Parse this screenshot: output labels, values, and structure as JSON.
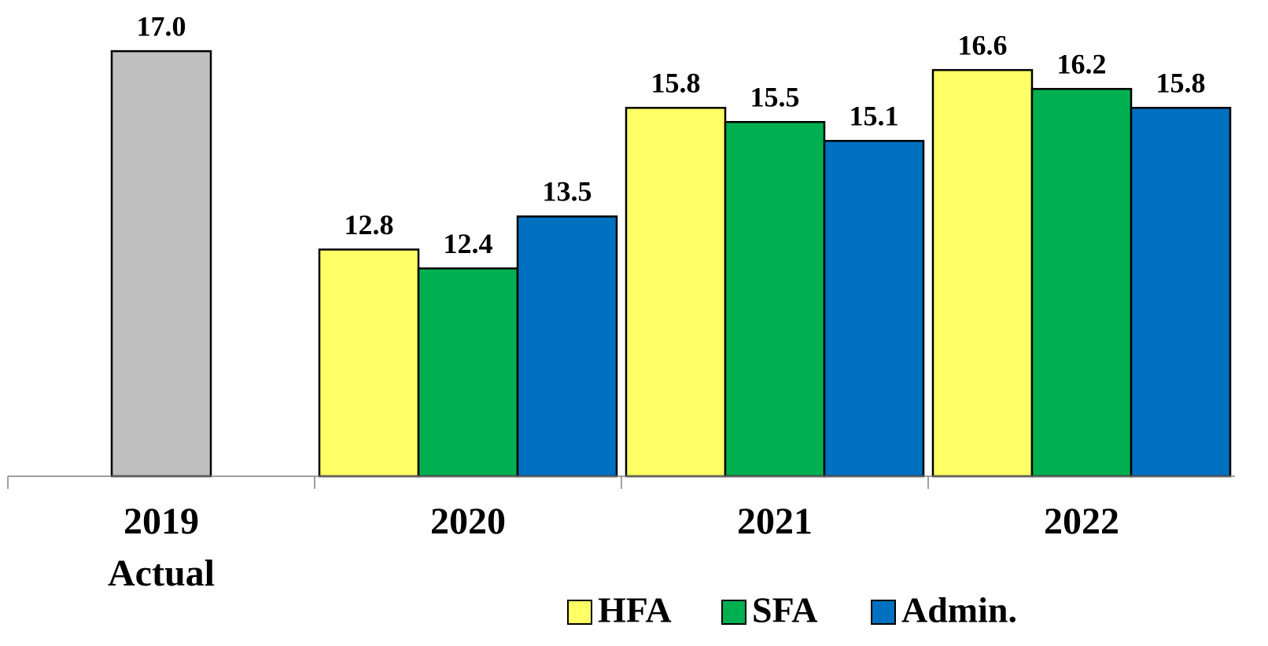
{
  "chart_data": {
    "type": "bar",
    "categories": [
      [
        "2019",
        "Actual"
      ],
      [
        "2020"
      ],
      [
        "2021"
      ],
      [
        "2022"
      ]
    ],
    "series": [
      {
        "color": "#c0c0c0",
        "values": [
          17.0,
          null,
          null,
          null
        ],
        "value_labels": [
          "17.0",
          null,
          null,
          null
        ]
      },
      {
        "name": "HFA",
        "color": "#ffff66",
        "values": [
          null,
          12.8,
          15.8,
          16.6
        ]
      },
      {
        "name": "SFA",
        "color": "#00b050",
        "values": [
          null,
          12.4,
          15.5,
          16.2
        ]
      },
      {
        "name": "Admin.",
        "color": "#0070c0",
        "values": [
          null,
          13.5,
          15.1,
          15.8
        ]
      }
    ],
    "ylim": [
      8,
      18
    ]
  }
}
